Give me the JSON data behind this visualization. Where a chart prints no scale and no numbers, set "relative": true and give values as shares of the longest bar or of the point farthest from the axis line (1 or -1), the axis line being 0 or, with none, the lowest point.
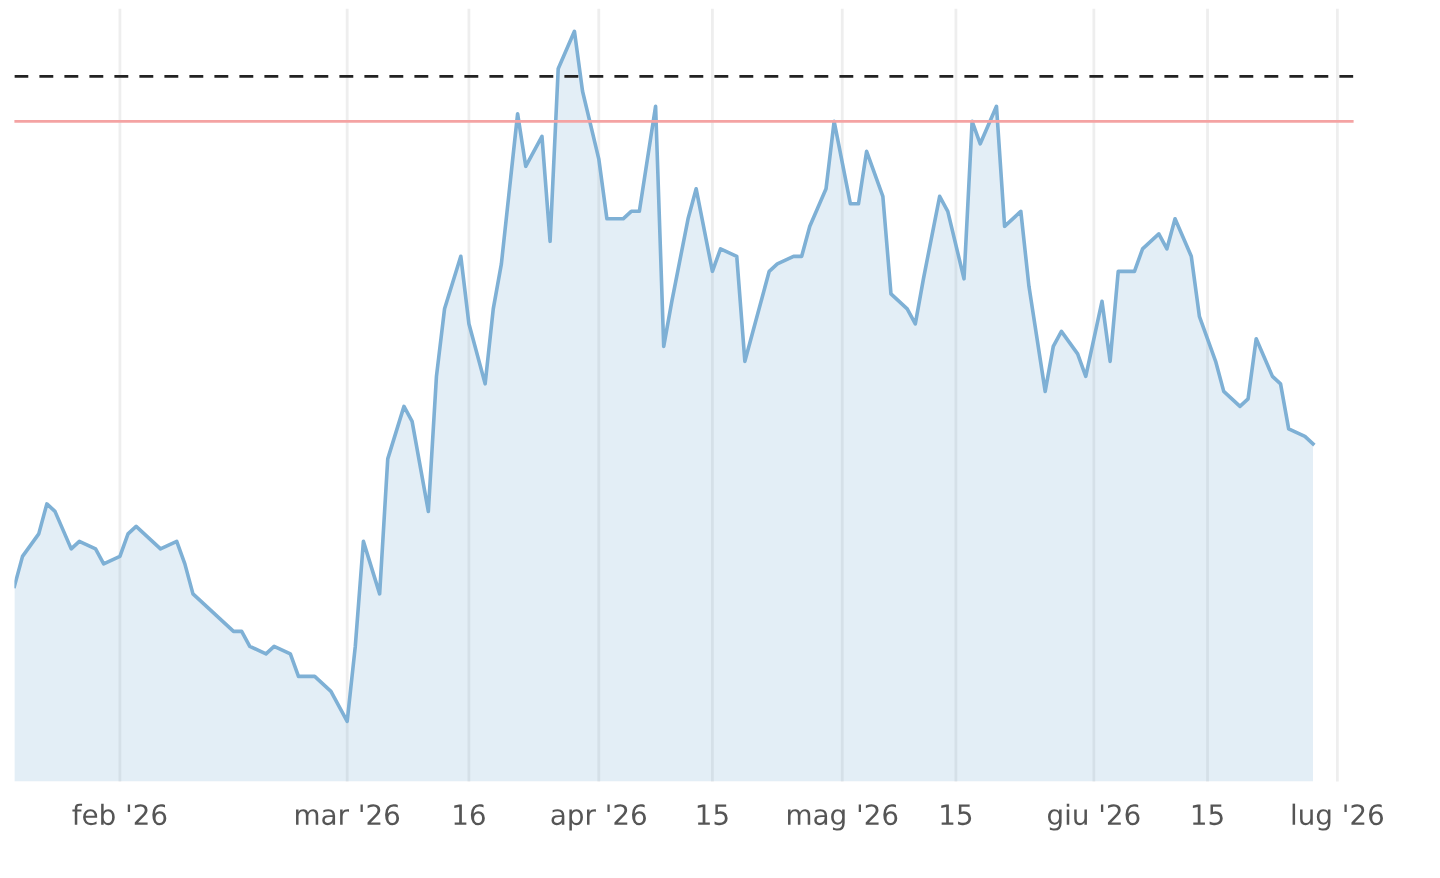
{
  "chart_data": {
    "type": "area",
    "relative": true,
    "x": [
      "2026-01-19",
      "2026-01-20",
      "2026-01-22",
      "2026-01-23",
      "2026-01-24",
      "2026-01-26",
      "2026-01-27",
      "2026-01-29",
      "2026-01-30",
      "2026-02-01",
      "2026-02-02",
      "2026-02-03",
      "2026-02-05",
      "2026-02-06",
      "2026-02-08",
      "2026-02-09",
      "2026-02-10",
      "2026-02-12",
      "2026-02-13",
      "2026-02-15",
      "2026-02-16",
      "2026-02-17",
      "2026-02-19",
      "2026-02-20",
      "2026-02-22",
      "2026-02-23",
      "2026-02-25",
      "2026-02-26",
      "2026-02-27",
      "2026-03-01",
      "2026-03-02",
      "2026-03-03",
      "2026-03-05",
      "2026-03-06",
      "2026-03-08",
      "2026-03-09",
      "2026-03-11",
      "2026-03-12",
      "2026-03-13",
      "2026-03-15",
      "2026-03-16",
      "2026-03-18",
      "2026-03-19",
      "2026-03-20",
      "2026-03-22",
      "2026-03-23",
      "2026-03-25",
      "2026-03-26",
      "2026-03-27",
      "2026-03-29",
      "2026-03-30",
      "2026-04-01",
      "2026-04-02",
      "2026-04-04",
      "2026-04-05",
      "2026-04-06",
      "2026-04-08",
      "2026-04-09",
      "2026-04-10",
      "2026-04-12",
      "2026-04-13",
      "2026-04-15",
      "2026-04-16",
      "2026-04-18",
      "2026-04-19",
      "2026-04-20",
      "2026-04-22",
      "2026-04-23",
      "2026-04-25",
      "2026-04-26",
      "2026-04-27",
      "2026-04-29",
      "2026-04-30",
      "2026-05-02",
      "2026-05-03",
      "2026-05-04",
      "2026-05-06",
      "2026-05-07",
      "2026-05-09",
      "2026-05-10",
      "2026-05-11",
      "2026-05-13",
      "2026-05-14",
      "2026-05-16",
      "2026-05-17",
      "2026-05-18",
      "2026-05-20",
      "2026-05-21",
      "2026-05-23",
      "2026-05-24",
      "2026-05-26",
      "2026-05-27",
      "2026-05-28",
      "2026-05-30",
      "2026-05-31",
      "2026-06-02",
      "2026-06-03",
      "2026-06-04",
      "2026-06-06",
      "2026-06-07",
      "2026-06-09",
      "2026-06-10",
      "2026-06-11",
      "2026-06-13",
      "2026-06-14",
      "2026-06-16",
      "2026-06-17",
      "2026-06-19",
      "2026-06-20",
      "2026-06-21",
      "2026-06-23",
      "2026-06-24",
      "2026-06-25",
      "2026-06-27",
      "2026-06-28"
    ],
    "series": [
      {
        "color": "#7eb0d5",
        "values": [
          0.26,
          0.3,
          0.33,
          0.37,
          0.36,
          0.31,
          0.32,
          0.31,
          0.29,
          0.3,
          0.33,
          0.34,
          0.32,
          0.31,
          0.32,
          0.29,
          0.25,
          0.23,
          0.22,
          0.2,
          0.2,
          0.18,
          0.17,
          0.18,
          0.17,
          0.14,
          0.14,
          0.13,
          0.12,
          0.08,
          0.18,
          0.32,
          0.25,
          0.43,
          0.5,
          0.48,
          0.36,
          0.54,
          0.63,
          0.7,
          0.61,
          0.53,
          0.63,
          0.69,
          0.89,
          0.82,
          0.86,
          0.72,
          0.95,
          1.0,
          0.92,
          0.83,
          0.75,
          0.75,
          0.76,
          0.76,
          0.9,
          0.58,
          0.64,
          0.75,
          0.79,
          0.68,
          0.71,
          0.7,
          0.56,
          0.6,
          0.68,
          0.69,
          0.7,
          0.7,
          0.74,
          0.79,
          0.88,
          0.77,
          0.77,
          0.84,
          0.78,
          0.65,
          0.63,
          0.61,
          0.67,
          0.78,
          0.76,
          0.67,
          0.88,
          0.85,
          0.9,
          0.74,
          0.76,
          0.66,
          0.52,
          0.58,
          0.6,
          0.57,
          0.54,
          0.64,
          0.56,
          0.68,
          0.68,
          0.71,
          0.73,
          0.71,
          0.75,
          0.7,
          0.62,
          0.56,
          0.52,
          0.5,
          0.51,
          0.59,
          0.54,
          0.53,
          0.47,
          0.46,
          0.45
        ]
      }
    ],
    "xlim": [
      "2026-01-19",
      "2026-07-03"
    ],
    "xticks": [
      {
        "value": "2026-02-01",
        "label": "feb '26"
      },
      {
        "value": "2026-03-01",
        "label": "mar '26"
      },
      {
        "value": "2026-03-16",
        "label": "16"
      },
      {
        "value": "2026-04-01",
        "label": "apr '26"
      },
      {
        "value": "2026-04-15",
        "label": "15"
      },
      {
        "value": "2026-05-01",
        "label": "mag '26"
      },
      {
        "value": "2026-05-15",
        "label": "15"
      },
      {
        "value": "2026-06-01",
        "label": "giu '26"
      },
      {
        "value": "2026-06-15",
        "label": "15"
      },
      {
        "value": "2026-07-01",
        "label": "lug '26"
      }
    ],
    "ref_lines": [
      {
        "axis": "y",
        "value": 0.94,
        "color": "#222222",
        "line_style": "dashed"
      },
      {
        "axis": "y",
        "value": 0.88,
        "color": "#f4a3a3",
        "line_style": "solid"
      }
    ],
    "grid": "x"
  }
}
